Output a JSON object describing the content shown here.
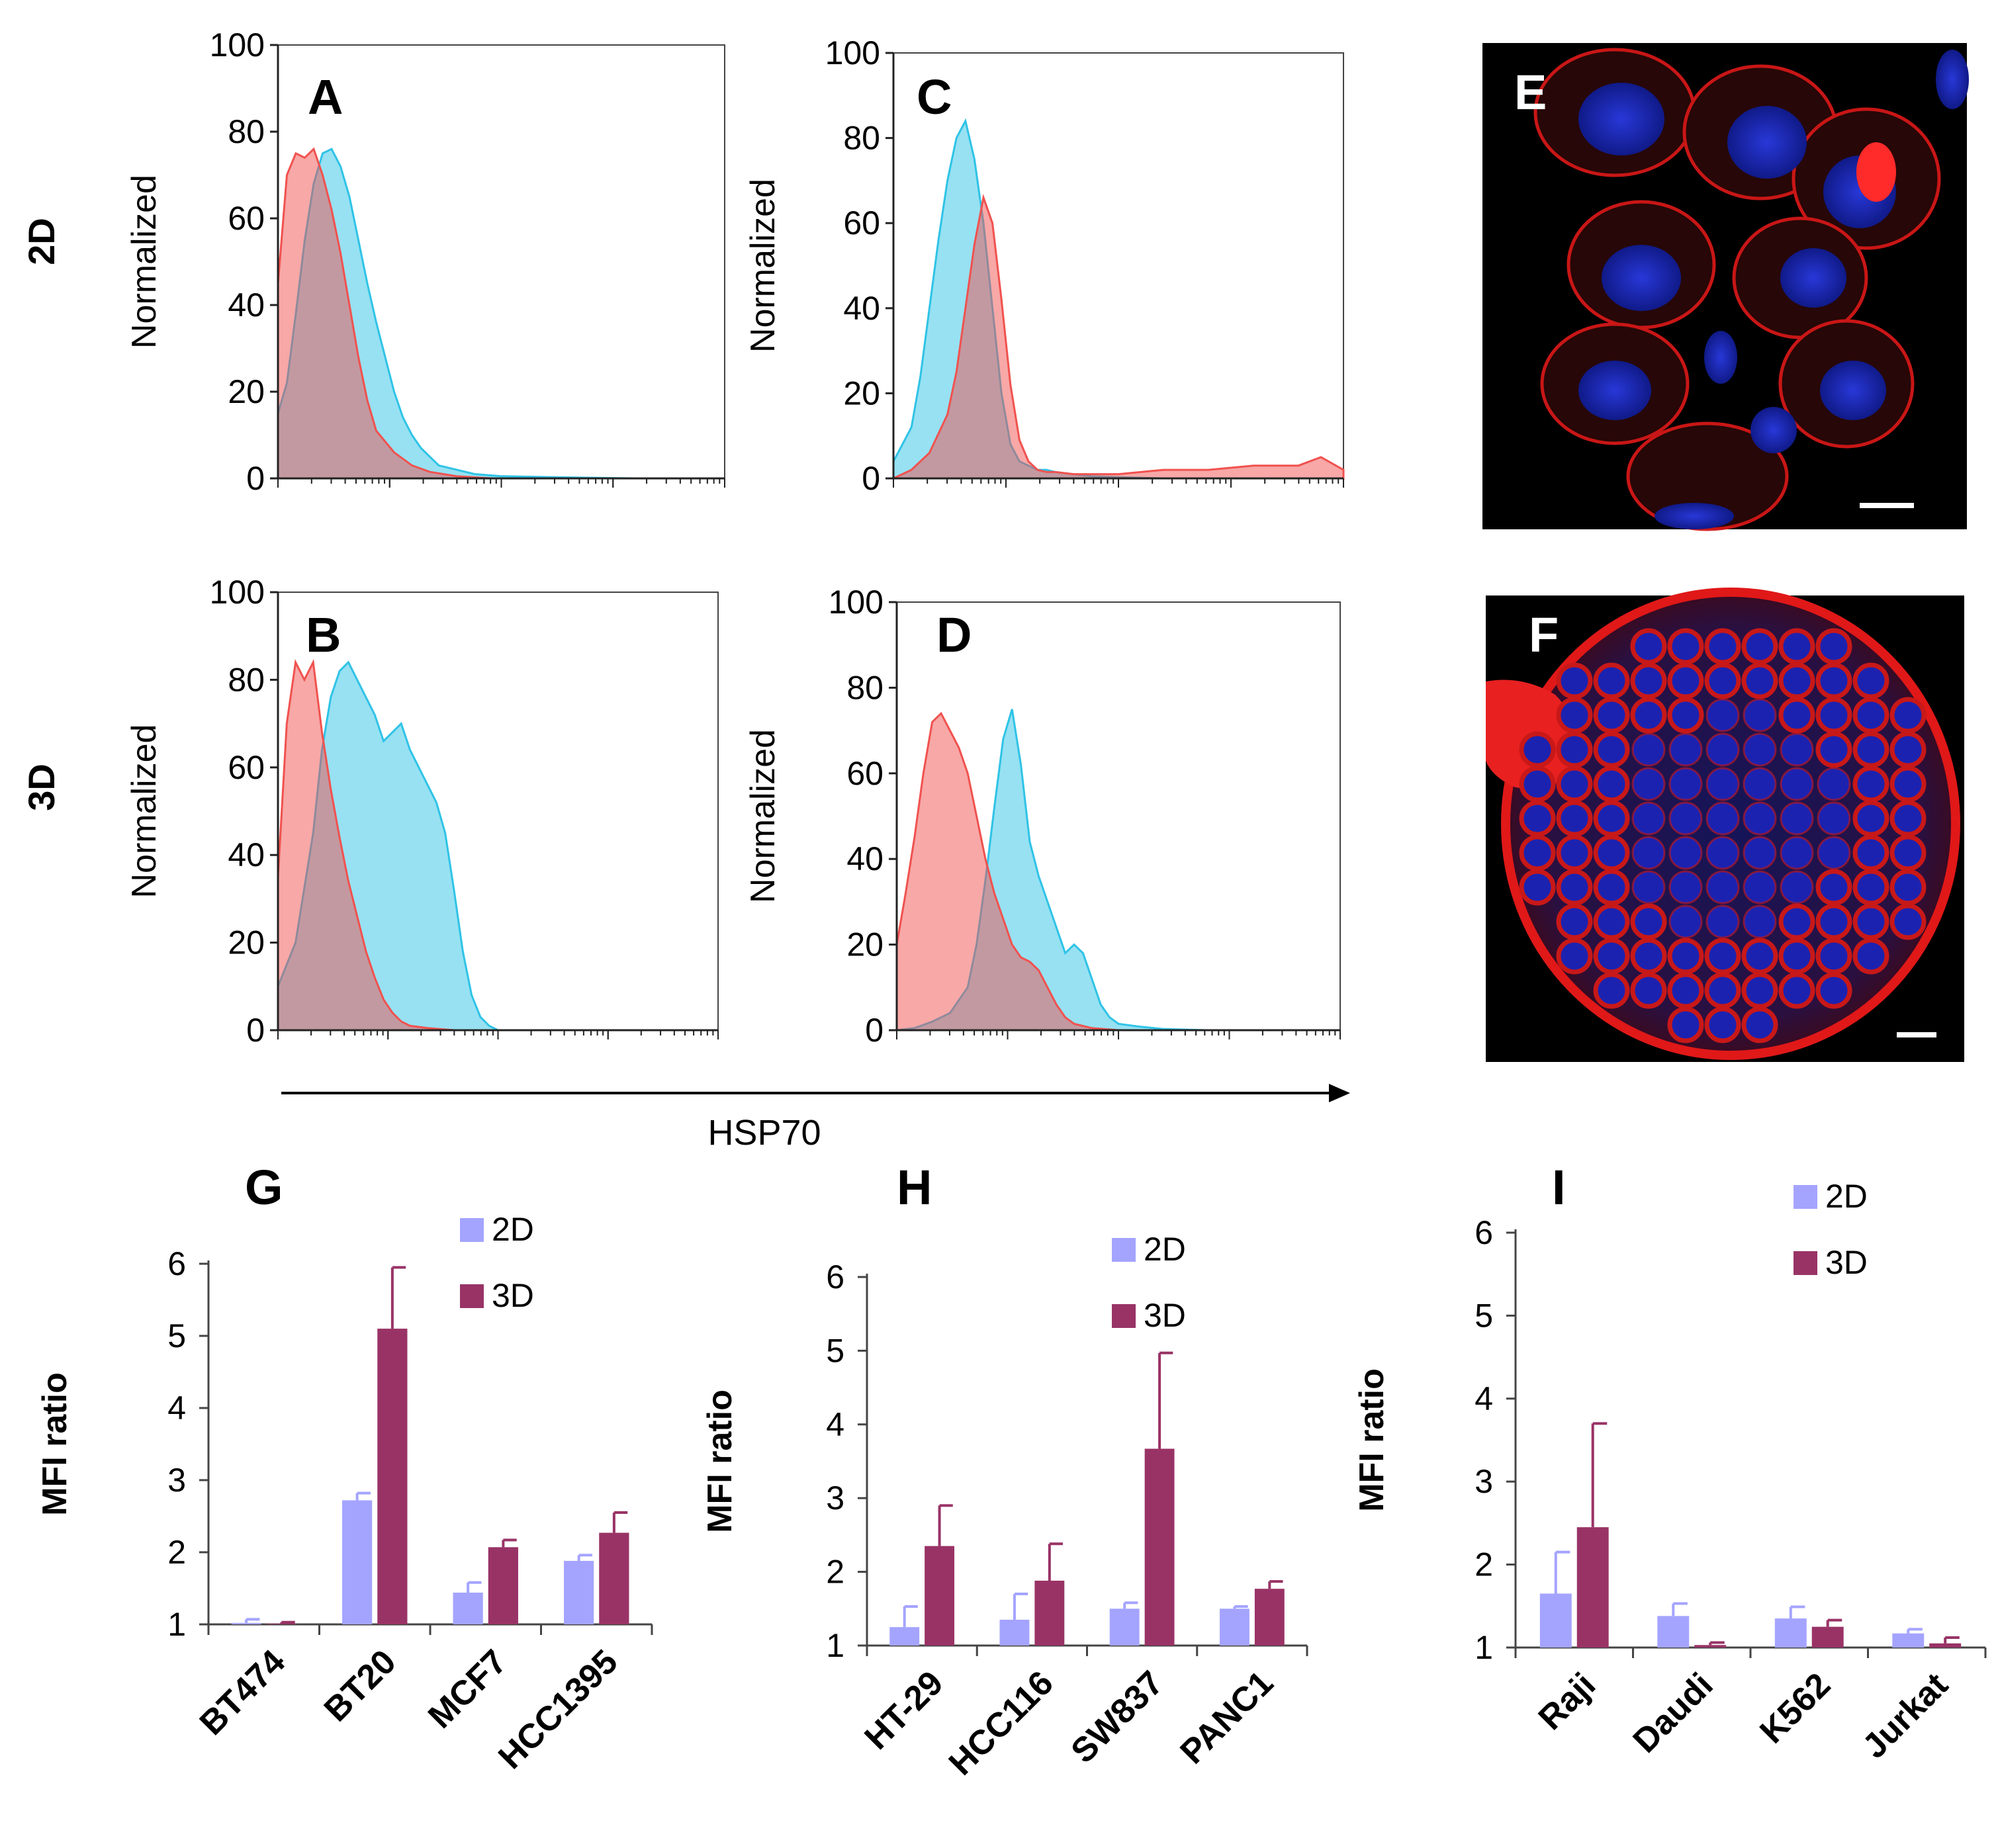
{
  "row_labels": [
    "2D",
    "3D"
  ],
  "x_axis_label": "HSP70",
  "colors": {
    "isotype": "#f0524f",
    "hsp70": "#2fc3e6",
    "bar_2d": "#a4a4ff",
    "bar_3d": "#993366",
    "image_bg": "#000000"
  },
  "chart_data": [
    {
      "panel": "A",
      "type": "area",
      "row": "2D",
      "ylabel": "Normalized",
      "ylim": [
        0,
        100
      ],
      "yticks": [
        "0",
        "20",
        "40",
        "60",
        "80",
        "100"
      ],
      "series": [
        {
          "x": [
            0,
            2,
            4,
            6,
            8,
            10,
            12,
            14,
            16,
            18,
            20,
            22,
            26,
            30,
            34,
            40,
            48,
            60,
            80,
            100
          ],
          "y": [
            45,
            70,
            75,
            74,
            76,
            70,
            62,
            52,
            40,
            28,
            18,
            11,
            6,
            3,
            1.5,
            0.5,
            0,
            0,
            0,
            0
          ]
        },
        {
          "x": [
            0,
            2,
            4,
            6,
            8,
            10,
            12,
            14,
            16,
            18,
            20,
            22,
            24,
            26,
            28,
            30,
            32,
            34,
            36,
            40,
            44,
            50,
            60,
            80,
            100
          ],
          "y": [
            15,
            22,
            38,
            55,
            68,
            75,
            76,
            72,
            65,
            55,
            45,
            36,
            28,
            20,
            14,
            10,
            7,
            5,
            3,
            2,
            1,
            0.5,
            0.3,
            0,
            0
          ]
        }
      ]
    },
    {
      "panel": "C",
      "type": "area",
      "row": "2D",
      "ylabel": "Normalized",
      "ylim": [
        0,
        100
      ],
      "yticks": [
        "0",
        "20",
        "40",
        "60",
        "80",
        "100"
      ],
      "series": [
        {
          "x": [
            0,
            4,
            8,
            12,
            14,
            16,
            18,
            20,
            22,
            24,
            26,
            28,
            30,
            32,
            34,
            36,
            40,
            44,
            50,
            60,
            70,
            80,
            90,
            95,
            100
          ],
          "y": [
            0,
            2,
            6,
            15,
            25,
            40,
            55,
            66,
            60,
            42,
            22,
            9,
            4,
            2,
            1.5,
            1.5,
            1,
            1,
            1,
            2,
            2,
            3,
            3,
            5,
            2
          ]
        },
        {
          "x": [
            0,
            2,
            4,
            6,
            8,
            10,
            12,
            14,
            16,
            18,
            20,
            22,
            24,
            26,
            28,
            30,
            32,
            34,
            36,
            40,
            44,
            50,
            60,
            80,
            100
          ],
          "y": [
            4,
            8,
            12,
            24,
            40,
            56,
            70,
            80,
            84,
            75,
            60,
            40,
            20,
            8,
            4,
            3,
            2,
            2,
            1.5,
            1,
            0.5,
            0.3,
            0,
            0,
            0
          ]
        }
      ]
    },
    {
      "panel": "B",
      "type": "area",
      "row": "3D",
      "ylabel": "Normalized",
      "ylim": [
        0,
        100
      ],
      "yticks": [
        "0",
        "20",
        "40",
        "60",
        "80",
        "100"
      ],
      "series": [
        {
          "x": [
            0,
            2,
            4,
            6,
            8,
            10,
            12,
            14,
            16,
            18,
            20,
            22,
            24,
            26,
            28,
            30,
            34,
            40,
            50,
            60,
            100
          ],
          "y": [
            35,
            70,
            84,
            80,
            84,
            68,
            55,
            44,
            34,
            26,
            18,
            12,
            7,
            4,
            2,
            1,
            0.5,
            0,
            0,
            0,
            0
          ]
        },
        {
          "x": [
            0,
            4,
            8,
            10,
            12,
            14,
            16,
            18,
            20,
            22,
            24,
            26,
            28,
            30,
            32,
            34,
            36,
            38,
            40,
            42,
            44,
            46,
            48,
            50,
            55,
            60,
            80,
            100
          ],
          "y": [
            10,
            20,
            45,
            64,
            76,
            82,
            84,
            80,
            76,
            72,
            66,
            68,
            70,
            64,
            60,
            56,
            52,
            45,
            32,
            18,
            8,
            3,
            1,
            0,
            0,
            0,
            0,
            0
          ]
        }
      ]
    },
    {
      "panel": "D",
      "type": "area",
      "row": "3D",
      "ylabel": "Normalized",
      "ylim": [
        0,
        100
      ],
      "yticks": [
        "0",
        "20",
        "40",
        "60",
        "80",
        "100"
      ],
      "series": [
        {
          "x": [
            0,
            2,
            4,
            6,
            8,
            10,
            12,
            14,
            16,
            18,
            20,
            22,
            24,
            26,
            28,
            30,
            32,
            34,
            36,
            38,
            40,
            44,
            50,
            60,
            80,
            100
          ],
          "y": [
            20,
            32,
            45,
            60,
            72,
            74,
            70,
            66,
            60,
            50,
            40,
            32,
            26,
            20,
            17,
            16,
            14,
            10,
            6,
            3,
            1.5,
            0.5,
            0,
            0,
            0,
            0
          ]
        },
        {
          "x": [
            0,
            4,
            8,
            12,
            16,
            18,
            20,
            22,
            24,
            26,
            28,
            30,
            32,
            34,
            36,
            38,
            40,
            42,
            44,
            46,
            48,
            50,
            55,
            60,
            70,
            80,
            100
          ],
          "y": [
            0,
            0.5,
            2,
            4,
            10,
            20,
            35,
            52,
            68,
            75,
            62,
            44,
            36,
            30,
            24,
            18,
            20,
            18,
            12,
            6,
            3,
            1.5,
            0.8,
            0.3,
            0,
            0,
            0
          ]
        }
      ]
    },
    {
      "panel": "G",
      "type": "bar",
      "ylabel": "MFI ratio",
      "ylim": [
        1,
        6
      ],
      "yticks": [
        "1",
        "2",
        "3",
        "4",
        "5",
        "6"
      ],
      "categories": [
        "BT474",
        "BT20",
        "MCF7",
        "HCC1395"
      ],
      "series": [
        {
          "name": "2D",
          "values": [
            1.02,
            2.72,
            1.44,
            1.88
          ],
          "errors": [
            0.05,
            0.1,
            0.14,
            0.08
          ]
        },
        {
          "name": "3D",
          "values": [
            1.01,
            5.1,
            2.07,
            2.27
          ],
          "errors": [
            0.02,
            0.85,
            0.1,
            0.28
          ]
        }
      ]
    },
    {
      "panel": "H",
      "type": "bar",
      "ylabel": "MFI ratio",
      "ylim": [
        1,
        6
      ],
      "yticks": [
        "1",
        "2",
        "3",
        "4",
        "5",
        "6"
      ],
      "categories": [
        "HT-29",
        "HCC116",
        "SW837",
        "PANC1"
      ],
      "series": [
        {
          "name": "2D",
          "values": [
            1.25,
            1.35,
            1.5,
            1.5
          ],
          "errors": [
            0.28,
            0.35,
            0.08,
            0.03
          ]
        },
        {
          "name": "3D",
          "values": [
            2.35,
            1.88,
            3.67,
            1.77
          ],
          "errors": [
            0.55,
            0.5,
            1.3,
            0.1
          ]
        }
      ]
    },
    {
      "panel": "I",
      "type": "bar",
      "ylabel": "MFI ratio",
      "ylim": [
        1,
        6
      ],
      "yticks": [
        "1",
        "2",
        "3",
        "4",
        "5",
        "6"
      ],
      "categories": [
        "Raji",
        "Daudi",
        "K562",
        "Jurkat"
      ],
      "series": [
        {
          "name": "2D",
          "values": [
            1.65,
            1.38,
            1.35,
            1.17
          ],
          "errors": [
            0.5,
            0.15,
            0.14,
            0.05
          ]
        },
        {
          "name": "3D",
          "values": [
            2.45,
            1.03,
            1.25,
            1.05
          ],
          "errors": [
            1.25,
            0.03,
            0.08,
            0.07
          ]
        }
      ]
    }
  ],
  "images": [
    {
      "panel": "E"
    },
    {
      "panel": "F"
    }
  ]
}
